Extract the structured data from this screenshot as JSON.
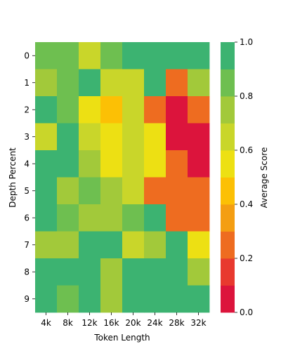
{
  "chart_data": {
    "type": "heatmap",
    "xlabel": "Token Length",
    "ylabel": "Depth Percent",
    "x_categories": [
      "4k",
      "8k",
      "12k",
      "16k",
      "20k",
      "24k",
      "28k",
      "32k"
    ],
    "y_categories": [
      "0",
      "1",
      "2",
      "3",
      "4",
      "5",
      "6",
      "7",
      "8",
      "9"
    ],
    "values": [
      [
        0.8,
        0.8,
        0.6,
        0.8,
        0.9,
        0.9,
        0.9,
        0.9
      ],
      [
        0.7,
        0.8,
        0.9,
        0.6,
        0.6,
        0.9,
        0.2,
        0.7
      ],
      [
        0.9,
        0.8,
        0.5,
        0.4,
        0.6,
        0.2,
        0.0,
        0.2
      ],
      [
        0.6,
        0.9,
        0.6,
        0.5,
        0.6,
        0.5,
        0.0,
        0.0
      ],
      [
        0.9,
        0.9,
        0.7,
        0.5,
        0.6,
        0.5,
        0.2,
        0.0
      ],
      [
        0.9,
        0.7,
        0.8,
        0.7,
        0.6,
        0.2,
        0.2,
        0.2
      ],
      [
        0.9,
        0.8,
        0.7,
        0.7,
        0.8,
        0.9,
        0.2,
        0.2
      ],
      [
        0.7,
        0.7,
        0.9,
        0.9,
        0.6,
        0.7,
        0.9,
        0.5
      ],
      [
        0.9,
        0.9,
        0.9,
        0.7,
        0.9,
        0.9,
        0.9,
        0.7
      ],
      [
        0.9,
        0.8,
        0.9,
        0.7,
        0.9,
        0.9,
        0.9,
        0.9
      ]
    ],
    "vmin": 0.0,
    "vmax": 1.0,
    "colorbar": {
      "label": "Average Score",
      "ticks": [
        "0.0",
        "0.2",
        "0.4",
        "0.6",
        "0.8",
        "1.0"
      ],
      "colors": [
        "#dc143c",
        "#e8392f",
        "#ee6c20",
        "#f49e12",
        "#fcc005",
        "#ede013",
        "#c9d62a",
        "#a2c93a",
        "#6ebf50",
        "#3cb371"
      ]
    }
  }
}
